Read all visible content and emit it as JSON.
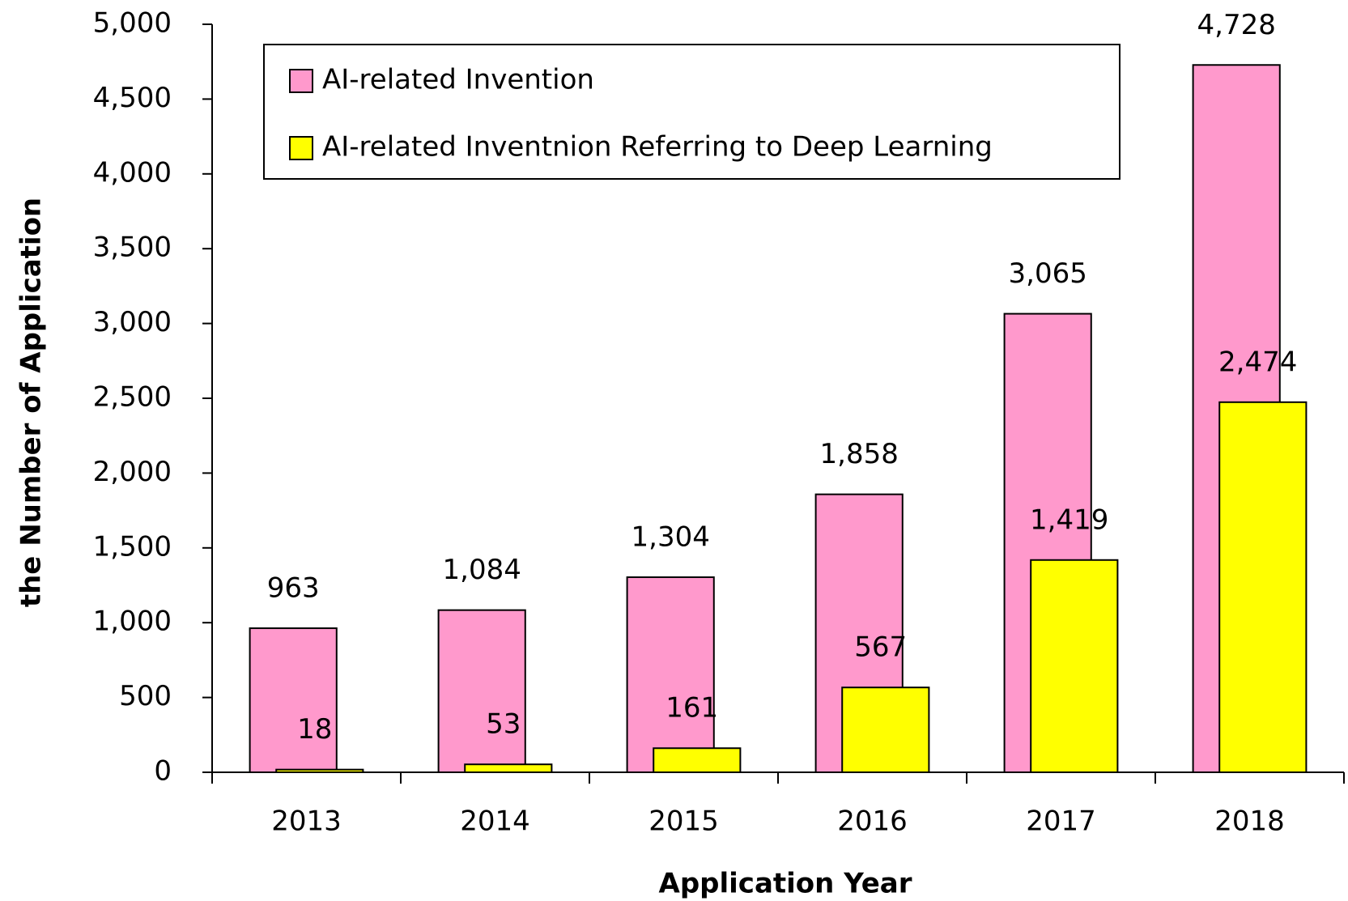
{
  "chart_data": {
    "type": "bar",
    "xlabel": "Application Year",
    "ylabel": "the Number of Application",
    "categories": [
      "2013",
      "2014",
      "2015",
      "2016",
      "2017",
      "2018"
    ],
    "series": [
      {
        "name": "AI-related Invention",
        "color": "#ff99cc",
        "values": [
          963,
          1084,
          1304,
          1858,
          3065,
          4728
        ],
        "value_labels": [
          "963",
          "1,084",
          "1,304",
          "1,858",
          "3,065",
          "4,728"
        ]
      },
      {
        "name": "AI-related Inventnion Referring to Deep Learning",
        "color": "#ffff00",
        "values": [
          18,
          53,
          161,
          567,
          1419,
          2474
        ],
        "value_labels": [
          "18",
          "53",
          "161",
          "567",
          "1,419",
          "2,474"
        ]
      }
    ],
    "ylim": [
      0,
      5000
    ],
    "yticks": [
      0,
      500,
      {
        "value": 1000,
        "label": "1,000"
      },
      {
        "value": 1500,
        "label": "1,500"
      },
      {
        "value": 2000,
        "label": "2,000"
      },
      {
        "value": 2500,
        "label": "2,500"
      },
      {
        "value": 3000,
        "label": "3,000"
      },
      {
        "value": 3500,
        "label": "3,500"
      },
      {
        "value": 4000,
        "label": "4,000"
      },
      {
        "value": 4500,
        "label": "4,500"
      },
      {
        "value": 5000,
        "label": "5,000"
      }
    ],
    "legend": "upper left"
  }
}
